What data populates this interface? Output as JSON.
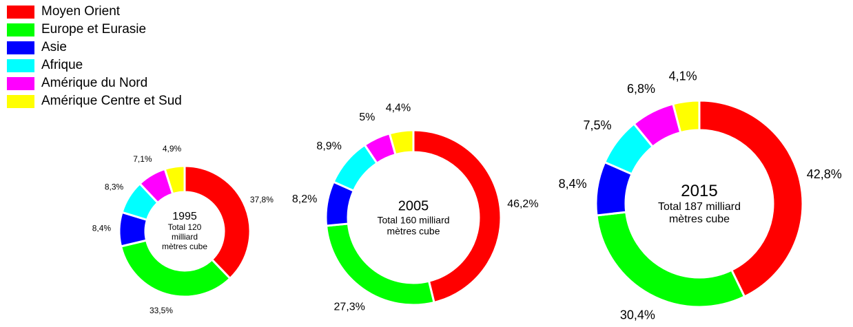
{
  "legend": {
    "labels": [
      "Moyen Orient",
      "Europe et Eurasie",
      "Asie",
      "Afrique",
      "Amérique du Nord",
      "Amérique Centre et Sud"
    ],
    "colors": [
      "#ff0000",
      "#00ff00",
      "#0000ff",
      "#00ffff",
      "#ff00ff",
      "#ffff00"
    ]
  },
  "chart_data": [
    {
      "type": "pie",
      "donut": true,
      "title": "1995",
      "subtitle": "Total 120 milliard mètres cube",
      "values": [
        37.8,
        33.5,
        8.4,
        8.3,
        7.1,
        4.9
      ],
      "value_labels": [
        "37,8%",
        "33,5%",
        "8,4%",
        "8,3%",
        "7,1%",
        "4,9%"
      ]
    },
    {
      "type": "pie",
      "donut": true,
      "title": "2005",
      "subtitle": "Total 160 milliard mètres cube",
      "values": [
        46.2,
        27.3,
        8.2,
        8.9,
        5,
        4.4
      ],
      "value_labels": [
        "46,2%",
        "27,3%",
        "8,2%",
        "8,9%",
        "5%",
        "4,4%"
      ]
    },
    {
      "type": "pie",
      "donut": true,
      "title": "2015",
      "subtitle": "Total 187 milliard mètres cube",
      "values": [
        42.8,
        30.4,
        8.4,
        7.5,
        6.8,
        4.1
      ],
      "value_labels": [
        "42,8%",
        "30,4%",
        "8,4%",
        "7,5%",
        "6,8%",
        "4,1%"
      ]
    }
  ]
}
